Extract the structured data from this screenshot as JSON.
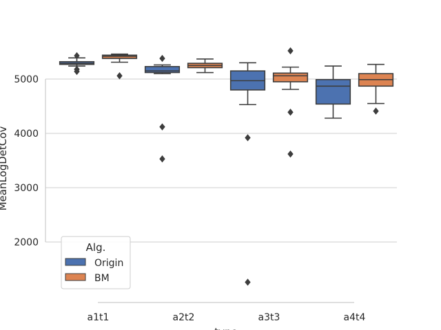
{
  "chart_data": {
    "type": "box",
    "title": "",
    "xlabel": "type",
    "ylabel": "MeanLogDetCov",
    "categories": [
      "a1t1",
      "a2t2",
      "a3t3",
      "a4t4"
    ],
    "yticks": [
      2000,
      3000,
      4000,
      5000
    ],
    "ylim": [
      860,
      5900
    ],
    "grid": "horizontal",
    "legend": {
      "title": "Alg.",
      "placement": "lower-left"
    },
    "series": [
      {
        "name": "Origin",
        "color": "#4c72b0",
        "boxes": [
          {
            "whislo": 5240,
            "q1": 5270,
            "med": 5290,
            "q3": 5320,
            "whishi": 5390,
            "fliers": [
              5430,
              5180,
              5140
            ]
          },
          {
            "whislo": 5100,
            "q1": 5120,
            "med": 5150,
            "q3": 5230,
            "whishi": 5260,
            "fliers": [
              5380,
              4120,
              3530
            ]
          },
          {
            "whislo": 4530,
            "q1": 4800,
            "med": 4970,
            "q3": 5150,
            "whishi": 5300,
            "fliers": [
              3920,
              1260
            ]
          },
          {
            "whislo": 4280,
            "q1": 4540,
            "med": 4870,
            "q3": 4990,
            "whishi": 5240,
            "fliers": []
          }
        ]
      },
      {
        "name": "BM",
        "color": "#dd8452",
        "boxes": [
          {
            "whislo": 5310,
            "q1": 5380,
            "med": 5420,
            "q3": 5440,
            "whishi": 5460,
            "fliers": [
              5060
            ]
          },
          {
            "whislo": 5120,
            "q1": 5210,
            "med": 5250,
            "q3": 5290,
            "whishi": 5370,
            "fliers": []
          },
          {
            "whislo": 4810,
            "q1": 4950,
            "med": 5060,
            "q3": 5110,
            "whishi": 5220,
            "fliers": [
              5520,
              4390,
              3620
            ]
          },
          {
            "whislo": 4550,
            "q1": 4870,
            "med": 4990,
            "q3": 5100,
            "whishi": 5270,
            "fliers": [
              4410
            ]
          }
        ]
      }
    ]
  }
}
